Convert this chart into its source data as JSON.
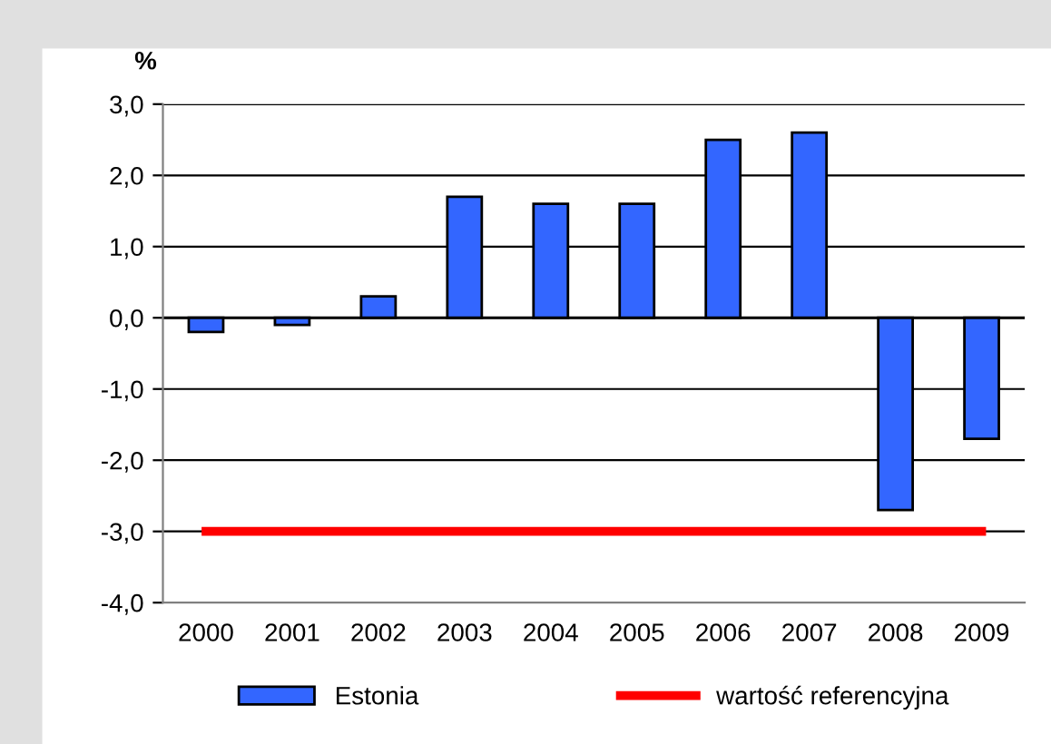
{
  "chart_data": {
    "type": "bar",
    "ylabel": "%",
    "categories": [
      "2000",
      "2001",
      "2002",
      "2003",
      "2004",
      "2005",
      "2006",
      "2007",
      "2008",
      "2009"
    ],
    "series": [
      {
        "name": "Estonia",
        "color": "#3366ff",
        "values": [
          -0.2,
          -0.1,
          0.3,
          1.7,
          1.6,
          1.6,
          2.5,
          2.6,
          -2.7,
          -1.7
        ]
      },
      {
        "name": "wartość referencyjna",
        "type": "line",
        "color": "#ff0000",
        "values": [
          -3.0,
          -3.0,
          -3.0,
          -3.0,
          -3.0,
          -3.0,
          -3.0,
          -3.0,
          -3.0,
          -3.0
        ]
      }
    ],
    "ylim": [
      -4.0,
      3.0
    ],
    "yticks": [
      {
        "value": -4.0,
        "label": "-4,0"
      },
      {
        "value": -3.0,
        "label": "-3,0"
      },
      {
        "value": -2.0,
        "label": "-2,0"
      },
      {
        "value": -1.0,
        "label": "-1,0"
      },
      {
        "value": 0.0,
        "label": "0,0"
      },
      {
        "value": 1.0,
        "label": "1,0"
      },
      {
        "value": 2.0,
        "label": "2,0"
      },
      {
        "value": 3.0,
        "label": "3,0"
      }
    ],
    "grid": "y",
    "legend": "bottom",
    "marker": "none",
    "line_style": "solid"
  }
}
